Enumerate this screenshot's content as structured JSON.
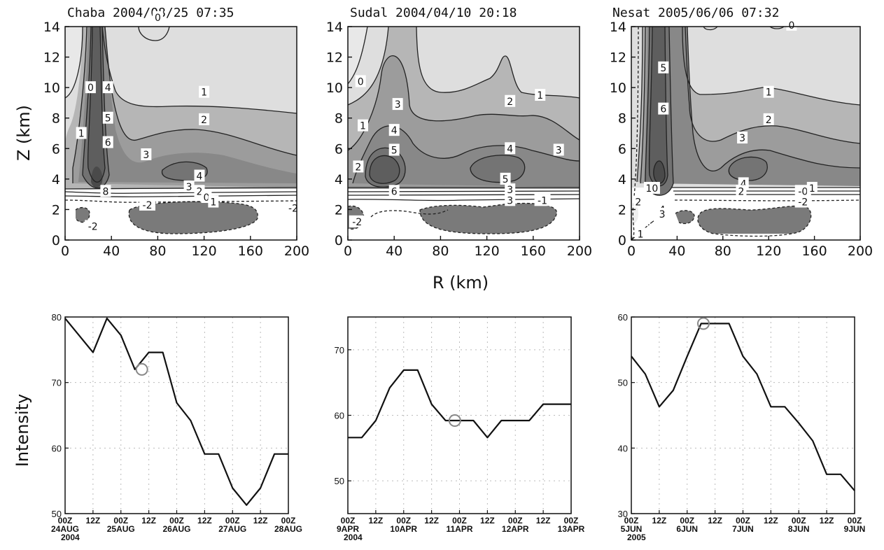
{
  "chart_data": [
    {
      "type": "contour",
      "title": "Chaba 2004/08/25 07:35",
      "xlim": [
        0,
        200
      ],
      "ylim": [
        0,
        14
      ],
      "xticks": [
        0,
        40,
        80,
        120,
        160,
        200
      ],
      "yticks": [
        0,
        2,
        4,
        6,
        8,
        10,
        12,
        14
      ],
      "contour_labels": [
        {
          "text": "0",
          "x": 22,
          "y": 10.0
        },
        {
          "text": "0",
          "x": 80,
          "y": 14.6
        },
        {
          "text": "1",
          "x": 14,
          "y": 7.0
        },
        {
          "text": "4",
          "x": 37,
          "y": 10.0
        },
        {
          "text": "5",
          "x": 37,
          "y": 8.0
        },
        {
          "text": "6",
          "x": 37,
          "y": 6.4
        },
        {
          "text": "8",
          "x": 35,
          "y": 3.2
        },
        {
          "text": "1",
          "x": 120,
          "y": 9.7
        },
        {
          "text": "2",
          "x": 120,
          "y": 7.9
        },
        {
          "text": "3",
          "x": 70,
          "y": 5.6
        },
        {
          "text": "3",
          "x": 107,
          "y": 3.5
        },
        {
          "text": "4",
          "x": 116,
          "y": 4.2
        },
        {
          "text": "2",
          "x": 116,
          "y": 3.2
        },
        {
          "text": "0",
          "x": 122,
          "y": 2.8
        },
        {
          "text": "1",
          "x": 128,
          "y": 2.5
        },
        {
          "text": "-2",
          "x": 71,
          "y": 2.3
        },
        {
          "text": "-2",
          "x": 24,
          "y": 0.9
        },
        {
          "text": "-2",
          "x": 197,
          "y": 2.1
        }
      ]
    },
    {
      "type": "contour",
      "title": "Sudal 2004/04/10 20:18",
      "xlim": [
        0,
        200
      ],
      "ylim": [
        0,
        14
      ],
      "xticks": [
        0,
        40,
        80,
        120,
        160,
        200
      ],
      "yticks": [
        0,
        2,
        4,
        6,
        8,
        10,
        12,
        14
      ],
      "contour_labels": [
        {
          "text": "0",
          "x": 11,
          "y": 10.4
        },
        {
          "text": "1",
          "x": 13,
          "y": 7.5
        },
        {
          "text": "2",
          "x": 9,
          "y": 4.8
        },
        {
          "text": "3",
          "x": 43,
          "y": 8.9
        },
        {
          "text": "4",
          "x": 40,
          "y": 7.2
        },
        {
          "text": "5",
          "x": 40,
          "y": 5.9
        },
        {
          "text": "6",
          "x": 40,
          "y": 3.2
        },
        {
          "text": "2",
          "x": 140,
          "y": 9.1
        },
        {
          "text": "1",
          "x": 166,
          "y": 9.5
        },
        {
          "text": "4",
          "x": 140,
          "y": 6.0
        },
        {
          "text": "3",
          "x": 182,
          "y": 5.9
        },
        {
          "text": "5",
          "x": 136,
          "y": 4.0
        },
        {
          "text": "3",
          "x": 140,
          "y": 3.3
        },
        {
          "text": "3",
          "x": 140,
          "y": 2.6
        },
        {
          "text": "-1",
          "x": 168,
          "y": 2.6
        },
        {
          "text": "-2",
          "x": 8,
          "y": 1.2
        }
      ]
    },
    {
      "type": "contour",
      "title": "Nesat 2005/06/06 07:32",
      "xlim": [
        0,
        200
      ],
      "ylim": [
        0,
        14
      ],
      "xticks": [
        0,
        40,
        80,
        120,
        160,
        200
      ],
      "yticks": [
        0,
        2,
        4,
        6,
        8,
        10,
        12,
        14
      ],
      "contour_labels": [
        {
          "text": "5",
          "x": 28,
          "y": 11.3
        },
        {
          "text": "6",
          "x": 28,
          "y": 8.6
        },
        {
          "text": "10",
          "x": 18,
          "y": 3.4
        },
        {
          "text": "4",
          "x": 27,
          "y": 2.0
        },
        {
          "text": "3",
          "x": 27,
          "y": 1.7
        },
        {
          "text": "1",
          "x": 120,
          "y": 9.7
        },
        {
          "text": "2",
          "x": 120,
          "y": 7.9
        },
        {
          "text": "3",
          "x": 97,
          "y": 6.7
        },
        {
          "text": "4",
          "x": 98,
          "y": 3.7
        },
        {
          "text": "2",
          "x": 96,
          "y": 3.2
        },
        {
          "text": "-0",
          "x": 150,
          "y": 3.2
        },
        {
          "text": "1",
          "x": 158,
          "y": 3.4
        },
        {
          "text": "-2",
          "x": 150,
          "y": 2.5
        },
        {
          "text": "0",
          "x": 140,
          "y": 14.1
        },
        {
          "text": "2",
          "x": 6,
          "y": 2.5
        },
        {
          "text": "1",
          "x": 8,
          "y": 0.4
        }
      ]
    },
    {
      "type": "line",
      "ylim": [
        50,
        80
      ],
      "yticks": [
        50,
        60,
        70,
        80
      ],
      "x": [
        0,
        6,
        12,
        18,
        24,
        30,
        36,
        42,
        48,
        54,
        60,
        66,
        72,
        78,
        84,
        90,
        96
      ],
      "y": [
        79.8,
        77.2,
        74.6,
        79.8,
        77.2,
        72.0,
        74.6,
        74.6,
        66.9,
        64.2,
        59.1,
        59.1,
        53.9,
        51.3,
        53.9,
        59.1,
        59.1
      ],
      "marker": {
        "x": 33,
        "y": 72.0
      },
      "xticks": [
        {
          "h": 0,
          "l1": "00Z",
          "l2": "24AUG",
          "l3": "2004"
        },
        {
          "h": 12,
          "l1": "12Z",
          "l2": "",
          "l3": ""
        },
        {
          "h": 24,
          "l1": "00Z",
          "l2": "25AUG",
          "l3": ""
        },
        {
          "h": 36,
          "l1": "12Z",
          "l2": "",
          "l3": ""
        },
        {
          "h": 48,
          "l1": "00Z",
          "l2": "26AUG",
          "l3": ""
        },
        {
          "h": 60,
          "l1": "12Z",
          "l2": "",
          "l3": ""
        },
        {
          "h": 72,
          "l1": "00Z",
          "l2": "27AUG",
          "l3": ""
        },
        {
          "h": 84,
          "l1": "12Z",
          "l2": "",
          "l3": ""
        },
        {
          "h": 96,
          "l1": "00Z",
          "l2": "28AUG",
          "l3": ""
        }
      ]
    },
    {
      "type": "line",
      "ylim": [
        45,
        75
      ],
      "yticks": [
        50,
        60,
        70
      ],
      "x": [
        0,
        6,
        12,
        18,
        24,
        30,
        36,
        42,
        48,
        54,
        60,
        66,
        72,
        78,
        84,
        90,
        96
      ],
      "y": [
        56.6,
        56.6,
        59.2,
        64.2,
        66.9,
        66.9,
        61.7,
        59.2,
        59.2,
        59.2,
        56.6,
        59.2,
        59.2,
        59.2,
        61.7,
        61.7,
        61.7
      ],
      "marker": {
        "x": 46,
        "y": 59.2
      },
      "xticks": [
        {
          "h": 0,
          "l1": "00Z",
          "l2": "9APR",
          "l3": "2004"
        },
        {
          "h": 12,
          "l1": "12Z",
          "l2": "",
          "l3": ""
        },
        {
          "h": 24,
          "l1": "00Z",
          "l2": "10APR",
          "l3": ""
        },
        {
          "h": 36,
          "l1": "12Z",
          "l2": "",
          "l3": ""
        },
        {
          "h": 48,
          "l1": "00Z",
          "l2": "11APR",
          "l3": ""
        },
        {
          "h": 60,
          "l1": "12Z",
          "l2": "",
          "l3": ""
        },
        {
          "h": 72,
          "l1": "00Z",
          "l2": "12APR",
          "l3": ""
        },
        {
          "h": 84,
          "l1": "12Z",
          "l2": "",
          "l3": ""
        },
        {
          "h": 96,
          "l1": "00Z",
          "l2": "13APR",
          "l3": ""
        }
      ]
    },
    {
      "type": "line",
      "ylim": [
        30,
        60
      ],
      "yticks": [
        30,
        40,
        50,
        60
      ],
      "x": [
        0,
        6,
        12,
        18,
        24,
        30,
        36,
        42,
        48,
        54,
        60,
        66,
        72,
        78,
        84,
        90,
        96
      ],
      "y": [
        54.0,
        51.3,
        46.3,
        48.8,
        54.0,
        59.0,
        59.0,
        59.0,
        54.0,
        51.3,
        46.3,
        46.3,
        43.8,
        41.1,
        36.0,
        36.0,
        33.5
      ],
      "marker": {
        "x": 31,
        "y": 59.0
      },
      "xticks": [
        {
          "h": 0,
          "l1": "00Z",
          "l2": "5JUN",
          "l3": "2005"
        },
        {
          "h": 12,
          "l1": "12Z",
          "l2": "",
          "l3": ""
        },
        {
          "h": 24,
          "l1": "00Z",
          "l2": "6JUN",
          "l3": ""
        },
        {
          "h": 36,
          "l1": "12Z",
          "l2": "",
          "l3": ""
        },
        {
          "h": 48,
          "l1": "00Z",
          "l2": "7JUN",
          "l3": ""
        },
        {
          "h": 60,
          "l1": "12Z",
          "l2": "",
          "l3": ""
        },
        {
          "h": 72,
          "l1": "00Z",
          "l2": "8JUN",
          "l3": ""
        },
        {
          "h": 84,
          "l1": "12Z",
          "l2": "",
          "l3": ""
        },
        {
          "h": 96,
          "l1": "00Z",
          "l2": "9JUN",
          "l3": ""
        }
      ]
    }
  ],
  "labels": {
    "ylabel_top": "Z (km)",
    "xlabel_top": "R (km)",
    "ylabel_bottom": "Intensity"
  }
}
